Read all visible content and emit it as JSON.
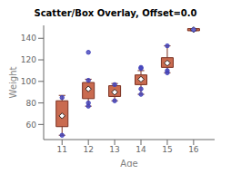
{
  "chart_data": {
    "type": "box",
    "title": "Scatter/Box Overlay, Offset=0.0",
    "x_label": "Age",
    "y_label": "Weight",
    "x": [
      11,
      12,
      13,
      14,
      15,
      16
    ],
    "series": [
      {
        "type": "box",
        "color": "#c96b50",
        "values": [
          {
            "q1": 58,
            "q3": 82,
            "median": 68,
            "whisker_low": 50,
            "whisker_high": 87
          },
          {
            "q1": 84,
            "q3": 99,
            "median": 93,
            "whisker_low": 77,
            "whisker_high": 102
          },
          {
            "q1": 86,
            "q3": 96,
            "median": 90,
            "whisker_low": 82,
            "whisker_high": 98
          },
          {
            "q1": 97,
            "q3": 106,
            "median": 102,
            "whisker_low": 88,
            "whisker_high": 110
          },
          {
            "q1": 113,
            "q3": 122,
            "median": 117,
            "whisker_low": 108,
            "whisker_high": 133
          },
          {
            "q1": 147,
            "q3": 149,
            "median": 148,
            "whisker_low": 147,
            "whisker_high": 149
          }
        ]
      },
      {
        "type": "scatter",
        "color": "#4444bb",
        "values": [
          [
            85,
            50
          ],
          [
            127,
            101,
            80,
            77
          ],
          [
            82,
            97
          ],
          [
            112,
            113,
            88,
            93
          ],
          [
            133,
            110,
            108
          ],
          [
            148
          ]
        ]
      }
    ],
    "xlim": [
      10.3,
      16.8
    ],
    "ylim": [
      46,
      152
    ],
    "xticks": [
      11,
      12,
      13,
      14,
      15,
      16
    ],
    "yticks": [
      60,
      80,
      100,
      120,
      140
    ],
    "grid": false
  }
}
